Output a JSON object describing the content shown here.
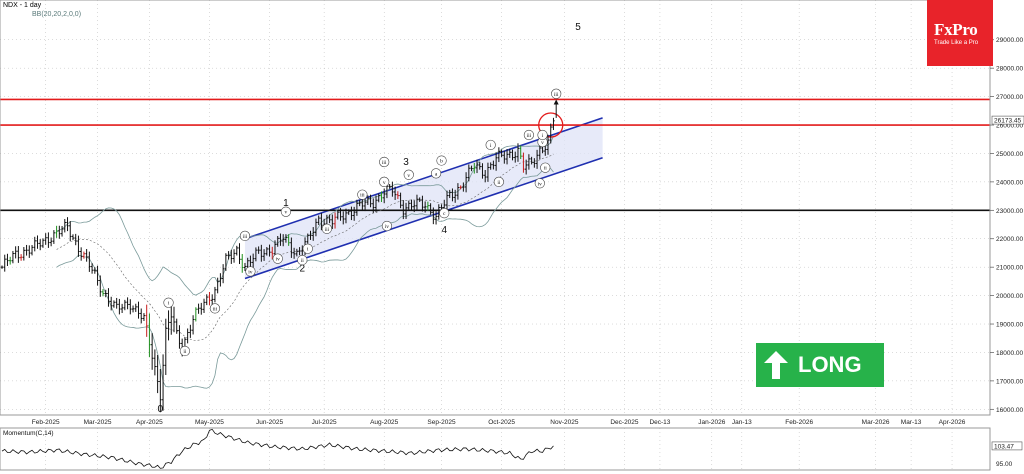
{
  "header": {
    "symbol_line": "NDX - 1 day",
    "indicator_line": "BB(20,20,2,0,0)"
  },
  "brand": {
    "logo": "FxPro",
    "tagline": "Trade Like a Pro"
  },
  "signal": {
    "label": "LONG",
    "color": "#27b24a"
  },
  "colors": {
    "bull": "#1f8f1f",
    "bear": "#c81e1e",
    "bar": "#111111",
    "bands": "#7a9a9a",
    "channel": "#1f2fb0",
    "channel_fill": "#dfe3f7",
    "resistance": "#e31b1b",
    "support": "#111111",
    "grid": "#b8b8b8"
  },
  "chart_data": [
    {
      "type": "candlestick",
      "title": "NDX - 1 day",
      "ylim": [
        15800,
        29800
      ],
      "yticks": [
        "29000.00",
        "28000.00",
        "27000.00",
        "26000.00",
        "25000.00",
        "24000.00",
        "23000.00",
        "22000.00",
        "21000.00",
        "20000.00",
        "19000.00",
        "18000.00",
        "17000.00",
        "16000.00"
      ],
      "last_price_label": "26173.45",
      "months": [
        {
          "label": "Feb-2025",
          "i": 16
        },
        {
          "label": "Mar-2025",
          "i": 35
        },
        {
          "label": "Apr-2025",
          "i": 54
        },
        {
          "label": "May-2025",
          "i": 76
        },
        {
          "label": "Jun-2025",
          "i": 98
        },
        {
          "label": "Jul-2025",
          "i": 118
        },
        {
          "label": "Aug-2025",
          "i": 140
        },
        {
          "label": "Sep-2025",
          "i": 161
        },
        {
          "label": "Oct-2025",
          "i": 183
        },
        {
          "label": "Nov-2025",
          "i": 206
        },
        {
          "label": "Dec-2025",
          "i": 228
        },
        {
          "label": "Dec-13",
          "i": 241
        },
        {
          "label": "Jan-2026",
          "i": 260
        },
        {
          "label": "Jan-13",
          "i": 271
        },
        {
          "label": "Feb-2026",
          "i": 292
        },
        {
          "label": "Mar-2026",
          "i": 320
        },
        {
          "label": "Mar-13",
          "i": 333
        },
        {
          "label": "Apr-2026",
          "i": 348
        }
      ],
      "closes": [
        {
          "i": 0,
          "y": 21000
        },
        {
          "i": 5,
          "y": 21450
        },
        {
          "i": 12,
          "y": 21700
        },
        {
          "i": 18,
          "y": 22100
        },
        {
          "i": 24,
          "y": 22400
        },
        {
          "i": 28,
          "y": 21700
        },
        {
          "i": 32,
          "y": 21050
        },
        {
          "i": 37,
          "y": 20150
        },
        {
          "i": 42,
          "y": 19500
        },
        {
          "i": 47,
          "y": 19750
        },
        {
          "i": 52,
          "y": 19150
        },
        {
          "i": 55,
          "y": 17900
        },
        {
          "i": 58,
          "y": 16550
        },
        {
          "i": 60,
          "y": 18700
        },
        {
          "i": 62,
          "y": 19300
        },
        {
          "i": 64,
          "y": 18600
        },
        {
          "i": 66,
          "y": 18200
        },
        {
          "i": 70,
          "y": 19200
        },
        {
          "i": 74,
          "y": 19700
        },
        {
          "i": 78,
          "y": 20200
        },
        {
          "i": 82,
          "y": 21200
        },
        {
          "i": 86,
          "y": 21600
        },
        {
          "i": 89,
          "y": 21000
        },
        {
          "i": 94,
          "y": 21500
        },
        {
          "i": 99,
          "y": 21650
        },
        {
          "i": 103,
          "y": 22000
        },
        {
          "i": 108,
          "y": 21500
        },
        {
          "i": 112,
          "y": 21900
        },
        {
          "i": 116,
          "y": 22700
        },
        {
          "i": 121,
          "y": 22600
        },
        {
          "i": 126,
          "y": 22900
        },
        {
          "i": 132,
          "y": 23200
        },
        {
          "i": 136,
          "y": 23300
        },
        {
          "i": 140,
          "y": 23650
        },
        {
          "i": 143,
          "y": 23700
        },
        {
          "i": 147,
          "y": 23100
        },
        {
          "i": 151,
          "y": 23200
        },
        {
          "i": 155,
          "y": 23200
        },
        {
          "i": 159,
          "y": 22800
        },
        {
          "i": 164,
          "y": 23500
        },
        {
          "i": 168,
          "y": 23850
        },
        {
          "i": 173,
          "y": 24550
        },
        {
          "i": 177,
          "y": 24350
        },
        {
          "i": 181,
          "y": 24800
        },
        {
          "i": 185,
          "y": 24950
        },
        {
          "i": 189,
          "y": 25100
        },
        {
          "i": 191,
          "y": 24500
        },
        {
          "i": 194,
          "y": 24650
        },
        {
          "i": 197,
          "y": 25150
        },
        {
          "i": 200,
          "y": 25350
        },
        {
          "i": 202,
          "y": 26173
        }
      ],
      "channel": {
        "upper": [
          {
            "i": 89,
            "y": 22000
          },
          {
            "i": 220,
            "y": 26250
          }
        ],
        "lower": [
          {
            "i": 89,
            "y": 20600
          },
          {
            "i": 220,
            "y": 24850
          }
        ]
      },
      "horizontal_levels": [
        {
          "y": 26900,
          "role": "resistance"
        },
        {
          "y": 26000,
          "role": "resistance"
        },
        {
          "y": 23000,
          "role": "support"
        }
      ],
      "target_circle": {
        "i": 201,
        "y": 26000
      },
      "target_arrow": {
        "i": 203,
        "y_from": 26250,
        "y_to": 26900
      },
      "wave_labels": [
        {
          "text": "5",
          "i": 211,
          "y": 29350,
          "plain": true
        },
        {
          "text": "1",
          "i": 104,
          "y": 23150,
          "plain": true
        },
        {
          "text": "2",
          "i": 110,
          "y": 20850,
          "plain": true
        },
        {
          "text": "3",
          "i": 148,
          "y": 24600,
          "plain": true
        },
        {
          "text": "4",
          "i": 162,
          "y": 22200,
          "plain": true
        },
        {
          "text": "0",
          "i": 58,
          "y": 15900,
          "plain": true
        },
        {
          "text": "iii",
          "i": 203,
          "y": 27100
        },
        {
          "text": "i",
          "i": 61,
          "y": 19750
        },
        {
          "text": "ii",
          "i": 67,
          "y": 18050
        },
        {
          "text": "iii",
          "i": 78,
          "y": 19550
        },
        {
          "text": "iii",
          "i": 89,
          "y": 22100
        },
        {
          "text": "iv",
          "i": 91,
          "y": 20850
        },
        {
          "text": "v",
          "i": 104,
          "y": 22950
        },
        {
          "text": "i",
          "i": 112,
          "y": 21650
        },
        {
          "text": "ii",
          "i": 110,
          "y": 21250
        },
        {
          "text": "iv",
          "i": 101,
          "y": 21300
        },
        {
          "text": "iii",
          "i": 119,
          "y": 22350
        },
        {
          "text": "iii",
          "i": 140,
          "y": 24700
        },
        {
          "text": "v",
          "i": 140,
          "y": 24000
        },
        {
          "text": "iii",
          "i": 132,
          "y": 23550
        },
        {
          "text": "iv",
          "i": 141,
          "y": 22450
        },
        {
          "text": "v",
          "i": 149,
          "y": 24250
        },
        {
          "text": "a",
          "i": 159,
          "y": 24300
        },
        {
          "text": "b",
          "i": 161,
          "y": 24750
        },
        {
          "text": "c",
          "i": 162,
          "y": 22900
        },
        {
          "text": "i",
          "i": 179,
          "y": 25300
        },
        {
          "text": "ii",
          "i": 182,
          "y": 24000
        },
        {
          "text": "iii",
          "i": 193,
          "y": 25650
        },
        {
          "text": "iv",
          "i": 197,
          "y": 23950
        },
        {
          "text": "v",
          "i": 198,
          "y": 25400
        },
        {
          "text": "ii",
          "i": 199,
          "y": 24500
        },
        {
          "text": "i",
          "i": 198,
          "y": 25650
        }
      ]
    },
    {
      "type": "line",
      "title": "Momentum(C,14)",
      "ylabel": "",
      "ylim": [
        92,
        112
      ],
      "yticks": [
        "95.00"
      ],
      "last_value_label": "103.47",
      "x": [
        0,
        10,
        20,
        30,
        40,
        50,
        55,
        58,
        62,
        66,
        70,
        74,
        76,
        80,
        90,
        100,
        110,
        120,
        130,
        140,
        150,
        160,
        170,
        180,
        186,
        190,
        194,
        198,
        202
      ],
      "y": [
        101,
        100.5,
        101.5,
        99.5,
        98,
        95,
        94,
        93,
        96,
        101,
        104,
        106,
        111,
        109,
        105,
        103,
        102,
        104,
        102,
        101,
        100,
        101.5,
        102,
        101,
        100,
        97,
        101,
        101,
        103.47
      ]
    }
  ]
}
